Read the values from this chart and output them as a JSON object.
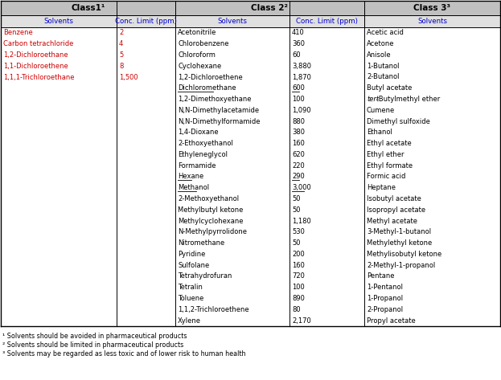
{
  "class1_header": "Class1¹",
  "class2_header": "Class 2²",
  "class3_header": "Class 3³",
  "subheader_solvents": "Solvents",
  "subheader_conc": "Conc. Limit (ppm)",
  "class1_solvents": [
    "Benzene",
    "Carbon tetrachloride",
    "1,2-Dichloroethane",
    "1,1-Dichloroethene",
    "1,1,1-Trichloroethane"
  ],
  "class1_limits": [
    "2",
    "4",
    "5",
    "8",
    "1,500"
  ],
  "class2_solvents": [
    "Acetonitrile",
    "Chlorobenzene",
    "Chloroform",
    "Cyclohexane",
    "1,2-Dichloroethene",
    "Dichloromethane",
    "1,2-Dimethoxyethane",
    "N,N-Dimethylacetamide",
    "N,N-Dimethylformamide",
    "1,4-Dioxane",
    "2-Ethoxyethanol",
    "Ethyleneglycol",
    "Formamide",
    "Hexane",
    "Methanol",
    "2-Methoxyethanol",
    "Methylbutyl ketone",
    "Methylcyclohexane",
    "N-Methylpyrrolidone",
    "Nitromethane",
    "Pyridine",
    "Sulfolane",
    "Tetrahydrofuran",
    "Tetralin",
    "Toluene",
    "1,1,2-Trichloroethene",
    "Xylene"
  ],
  "class2_limits": [
    "410",
    "360",
    "60",
    "3,880",
    "1,870",
    "600",
    "100",
    "1,090",
    "880",
    "380",
    "160",
    "620",
    "220",
    "290",
    "3,000",
    "50",
    "50",
    "1,180",
    "530",
    "50",
    "200",
    "160",
    "720",
    "100",
    "890",
    "80",
    "2,170"
  ],
  "class2_underlined": [
    5,
    13,
    14
  ],
  "class3_solvents": [
    "Acetic acid",
    "Acetone",
    "Anisole",
    "1-Butanol",
    "2-Butanol",
    "Butyl acetate",
    "tert-Butylmethyl ether",
    "Cumene",
    "Dimethyl sulfoxide",
    "Ethanol",
    "Ethyl acetate",
    "Ethyl ether",
    "Ethyl formate",
    "Formic acid",
    "Heptane",
    "Isobutyl acetate",
    "Isopropyl acetate",
    "Methyl acetate",
    "3-Methyl-1-butanol",
    "Methylethyl ketone",
    "Methylisobutyl ketone",
    "2-Methyl-1-propanol",
    "Pentane",
    "1-Pentanol",
    "1-Propanol",
    "2-Propanol",
    "Propyl acetate"
  ],
  "footnotes": [
    "¹ Solvents should be avoided in pharmaceutical products",
    "² Solvents should be limited in pharmaceutical products",
    "³ Solvents may be regarded as less toxic and of lower risk to human health"
  ],
  "header_bg": "#c0c0c0",
  "subheader_bg": "#e0e0e0",
  "text_color": "#000000",
  "red_color": "#cc0000",
  "subheader_blue": "#0000cc"
}
